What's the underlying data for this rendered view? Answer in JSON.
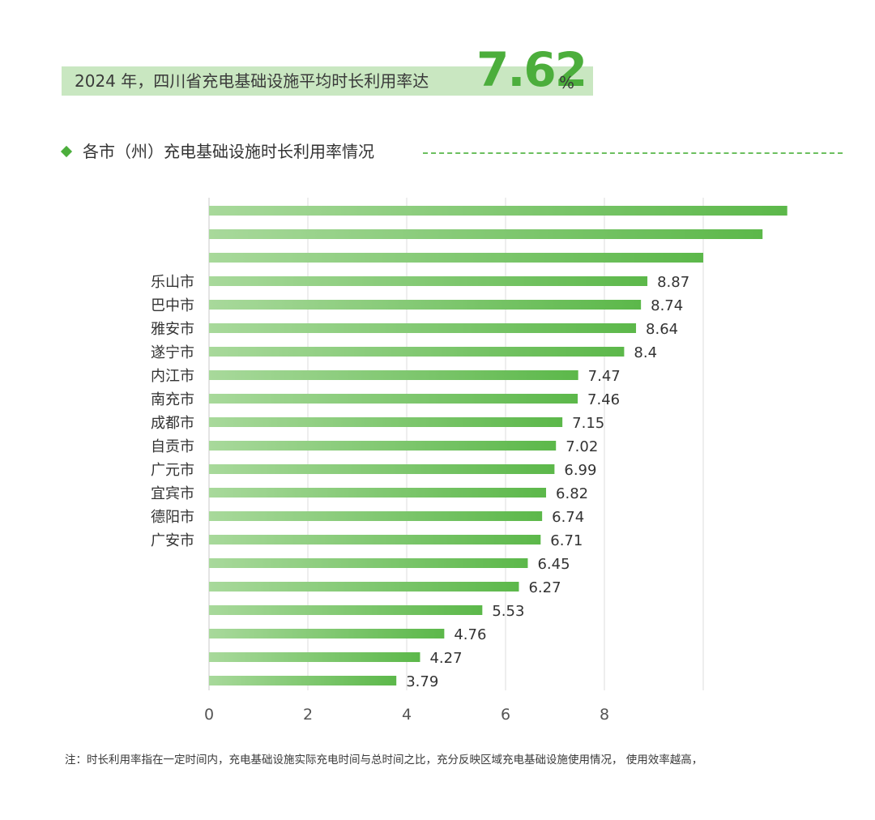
{
  "headline": {
    "text": "2024 年，四川省充电基础设施平均时长利用率达",
    "value": "7.62",
    "unit": "%"
  },
  "section": {
    "title": "各市（州）充电基础设施时长利用率情况"
  },
  "colors": {
    "accent": "#4cae3c",
    "bar_start": "#a8d99b",
    "bar_end": "#5cb84a",
    "highlight_bg": "#c9e7c1"
  },
  "chart_data": {
    "type": "bar",
    "orientation": "horizontal",
    "categories": [
      "",
      "",
      "",
      "乐山市",
      "巴中市",
      "雅安市",
      "遂宁市",
      "内江市",
      "南充市",
      "成都市",
      "自贡市",
      "广元市",
      "宜宾市",
      "德阳市",
      "广安市",
      "",
      "",
      "",
      "",
      "",
      ""
    ],
    "values": [
      11.7,
      11.2,
      10.0,
      8.87,
      8.74,
      8.64,
      8.4,
      7.47,
      7.46,
      7.15,
      7.02,
      6.99,
      6.82,
      6.74,
      6.71,
      6.45,
      6.27,
      5.53,
      4.76,
      4.27,
      3.79
    ],
    "value_labels": [
      "",
      "",
      "",
      "8.87",
      "8.74",
      "8.64",
      "8.4",
      "7.47",
      "7.46",
      "7.15",
      "7.02",
      "6.99",
      "6.82",
      "6.74",
      "6.71",
      "6.45",
      "6.27",
      "5.53",
      "4.76",
      "4.27",
      "3.79"
    ],
    "x_ticks": [
      "0",
      "2",
      "4",
      "6",
      "8"
    ],
    "xlim": [
      0,
      12
    ],
    "grid": true
  },
  "footnote": "注：时长利用率指在一定时间内，充电基础设施实际充电时间与总时间之比，充分反映区域充电基础设施使用情况， 使用效率越高，"
}
